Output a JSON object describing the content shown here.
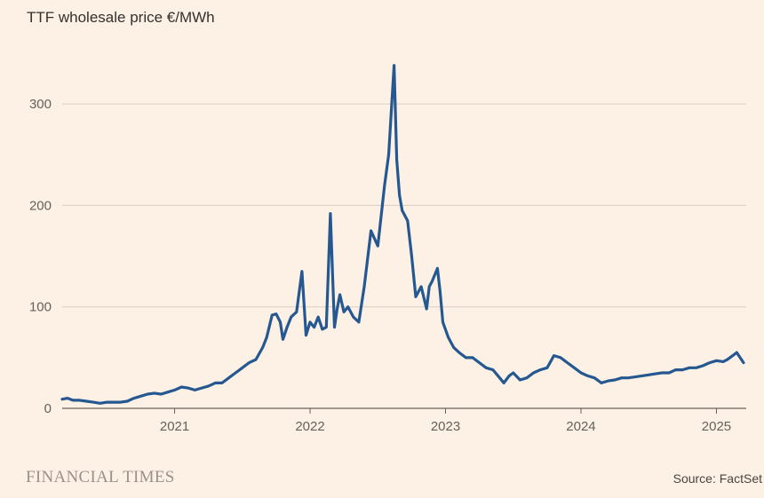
{
  "title": "TTF wholesale price €/MWh",
  "branding": "FINANCIAL TIMES",
  "source": "Source: FactSet",
  "colors": {
    "background": "#fdf1e5",
    "line": "#255891",
    "grid": "#dccdc0",
    "axis": "#6b625c",
    "tick_text": "#66605b"
  },
  "chart_data": {
    "type": "line",
    "title": "TTF wholesale price €/MWh",
    "xlabel": "",
    "ylabel": "",
    "xlim": [
      2020.17,
      2025.22
    ],
    "ylim": [
      0,
      350
    ],
    "x_ticks": [
      2021,
      2022,
      2023,
      2024,
      2025
    ],
    "x_tick_labels": [
      "2021",
      "2022",
      "2023",
      "2024",
      "2025"
    ],
    "y_ticks": [
      0,
      100,
      200,
      300
    ],
    "y_tick_labels": [
      "0",
      "100",
      "200",
      "300"
    ],
    "grid": "horizontal",
    "legend": "none",
    "series": [
      {
        "color": "#255891",
        "x": [
          2020.17,
          2020.21,
          2020.25,
          2020.3,
          2020.35,
          2020.4,
          2020.45,
          2020.5,
          2020.55,
          2020.6,
          2020.65,
          2020.7,
          2020.75,
          2020.8,
          2020.85,
          2020.9,
          2020.95,
          2021.0,
          2021.05,
          2021.1,
          2021.15,
          2021.2,
          2021.25,
          2021.3,
          2021.35,
          2021.4,
          2021.45,
          2021.5,
          2021.55,
          2021.6,
          2021.65,
          2021.68,
          2021.72,
          2021.75,
          2021.78,
          2021.8,
          2021.83,
          2021.86,
          2021.9,
          2021.94,
          2021.97,
          2022.0,
          2022.03,
          2022.06,
          2022.09,
          2022.12,
          2022.15,
          2022.18,
          2022.2,
          2022.22,
          2022.25,
          2022.28,
          2022.32,
          2022.36,
          2022.4,
          2022.45,
          2022.5,
          2022.55,
          2022.58,
          2022.62,
          2022.64,
          2022.66,
          2022.68,
          2022.72,
          2022.75,
          2022.78,
          2022.82,
          2022.86,
          2022.88,
          2022.9,
          2022.94,
          2022.96,
          2022.98,
          2023.02,
          2023.06,
          2023.1,
          2023.15,
          2023.2,
          2023.25,
          2023.3,
          2023.35,
          2023.4,
          2023.43,
          2023.47,
          2023.5,
          2023.55,
          2023.6,
          2023.65,
          2023.7,
          2023.75,
          2023.8,
          2023.85,
          2023.9,
          2023.95,
          2024.0,
          2024.05,
          2024.1,
          2024.15,
          2024.2,
          2024.25,
          2024.3,
          2024.35,
          2024.4,
          2024.45,
          2024.5,
          2024.55,
          2024.6,
          2024.65,
          2024.7,
          2024.75,
          2024.8,
          2024.85,
          2024.9,
          2024.95,
          2025.0,
          2025.05,
          2025.08,
          2025.12,
          2025.15,
          2025.2
        ],
        "y": [
          9,
          10,
          8,
          8,
          7,
          6,
          5,
          6,
          6,
          6,
          7,
          10,
          12,
          14,
          15,
          14,
          16,
          18,
          21,
          20,
          18,
          20,
          22,
          25,
          25,
          30,
          35,
          40,
          45,
          48,
          60,
          70,
          92,
          93,
          85,
          68,
          80,
          90,
          95,
          135,
          72,
          85,
          80,
          90,
          78,
          80,
          192,
          80,
          98,
          112,
          95,
          100,
          90,
          85,
          120,
          175,
          160,
          220,
          250,
          338,
          245,
          210,
          195,
          185,
          150,
          110,
          120,
          98,
          120,
          125,
          138,
          115,
          85,
          70,
          60,
          55,
          50,
          50,
          45,
          40,
          38,
          30,
          25,
          32,
          35,
          28,
          30,
          35,
          38,
          40,
          52,
          50,
          45,
          40,
          35,
          32,
          30,
          25,
          27,
          28,
          30,
          30,
          31,
          32,
          33,
          34,
          35,
          35,
          38,
          38,
          40,
          40,
          42,
          45,
          47,
          46,
          48,
          52,
          55,
          45
        ]
      }
    ]
  }
}
